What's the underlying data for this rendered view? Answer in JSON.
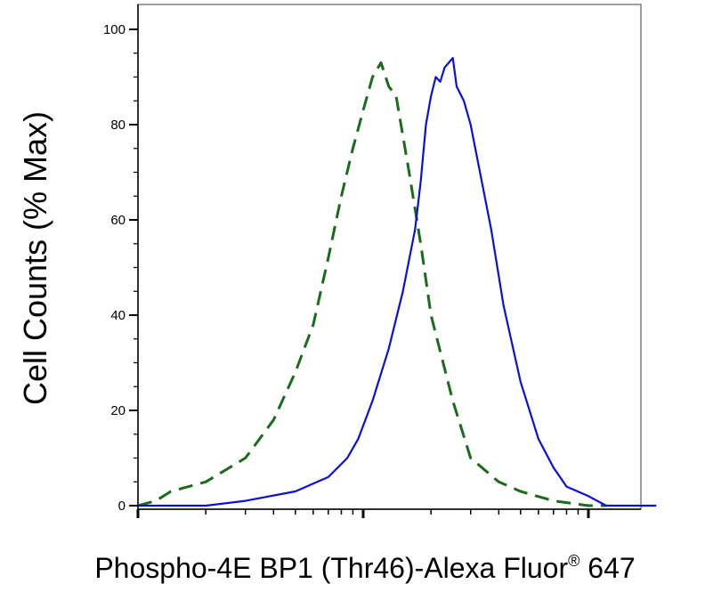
{
  "chart_data": {
    "type": "line",
    "title": "",
    "xlabel": "Phospho-4E BP1 (Thr46)-Alexa Fluor",
    "xlabel_superscript": "®",
    "xlabel_suffix": " 647",
    "ylabel": "Cell Counts (% Max)",
    "x_scale": "log",
    "x_ticks_labeled": false,
    "xlim": [
      0.1,
      1000
    ],
    "ylim": [
      0,
      100
    ],
    "y_ticks": [
      "0",
      "20",
      "40",
      "60",
      "80",
      "100"
    ],
    "grid": false,
    "legend": "none",
    "series": [
      {
        "color": "#1a6b1a",
        "line_style": "dashed",
        "x": [
          0.1,
          0.12,
          0.14,
          0.2,
          0.3,
          0.4,
          0.5,
          0.6,
          0.7,
          0.8,
          0.9,
          1.0,
          1.1,
          1.2,
          1.3,
          1.4,
          1.6,
          1.8,
          2.0,
          2.5,
          3.0,
          4.0,
          5.0,
          7.0,
          10.0,
          12.0
        ],
        "y": [
          0,
          1,
          3,
          5,
          10,
          18,
          28,
          38,
          52,
          65,
          75,
          83,
          90,
          93,
          88,
          86,
          70,
          55,
          40,
          22,
          10,
          5,
          3,
          1,
          0,
          0
        ]
      },
      {
        "color": "#0a10d8",
        "line_style": "solid",
        "x": [
          0.1,
          0.2,
          0.3,
          0.5,
          0.7,
          0.85,
          0.95,
          1.1,
          1.3,
          1.5,
          1.7,
          1.8,
          1.9,
          2.0,
          2.1,
          2.2,
          2.3,
          2.5,
          2.6,
          2.8,
          3.0,
          3.3,
          3.7,
          4.2,
          5.0,
          6.0,
          7.0,
          8.0,
          10.0,
          12.0,
          14.0,
          20.0
        ],
        "y": [
          0,
          0,
          1,
          3,
          6,
          10,
          14,
          22,
          33,
          45,
          58,
          68,
          80,
          86,
          90,
          89,
          92,
          94,
          88,
          85,
          80,
          70,
          58,
          42,
          26,
          14,
          8,
          4,
          2,
          0,
          0,
          0
        ]
      }
    ]
  }
}
